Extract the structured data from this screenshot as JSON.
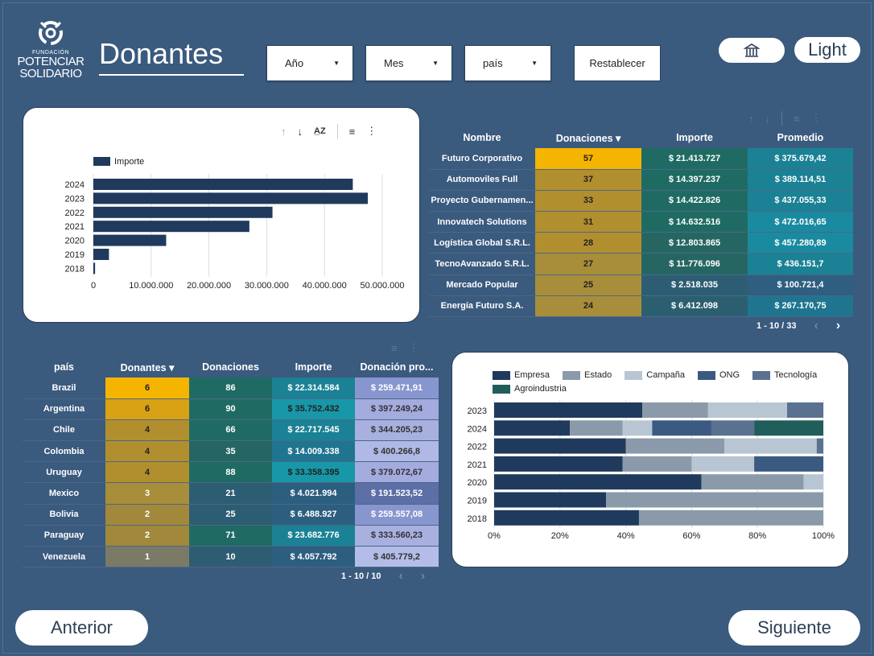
{
  "brand": {
    "line1": "FUNDACIÓN",
    "line2": "POTENCIAR",
    "line3": "SOLIDARIO"
  },
  "page_title": "Donantes",
  "filters": {
    "year": "Año",
    "month": "Mes",
    "country": "país",
    "reset": "Restablecer"
  },
  "header_buttons": {
    "home_icon": "building-icon",
    "theme": "Light"
  },
  "bar_chart": {
    "toolbar": [
      "sort-ascending-icon",
      "sort-descending-icon",
      "sort-az-icon",
      "filter-icon",
      "more-vertical-icon"
    ],
    "chart_data": {
      "type": "bar",
      "orientation": "horizontal",
      "categories": [
        "2024",
        "2023",
        "2022",
        "2021",
        "2020",
        "2019",
        "2018"
      ],
      "series": [
        {
          "name": "Importe",
          "values": [
            44900000,
            47500000,
            31000000,
            27000000,
            12600000,
            2700000,
            300000
          ]
        }
      ],
      "xticks": [
        "0",
        "10.000.000",
        "20.000.000",
        "30.000.000",
        "40.000.000",
        "50.000.000"
      ],
      "xlim": [
        0,
        50000000
      ],
      "legend": "top-left",
      "grid": true,
      "color": "#1f3a5c"
    }
  },
  "table1": {
    "headers": [
      "Nombre",
      "Donaciones",
      "Importe",
      "Promedio"
    ],
    "sort_indicator": "▾",
    "rows": [
      [
        "Futuro Corporativo",
        "57",
        "$ 21.413.727",
        "$ 375.679,42"
      ],
      [
        "Automoviles Full",
        "37",
        "$ 14.397.237",
        "$ 389.114,51"
      ],
      [
        "Proyecto Gubernamen...",
        "33",
        "$ 14.422.826",
        "$ 437.055,33"
      ],
      [
        "Innovatech Solutions",
        "31",
        "$ 14.632.516",
        "$ 472.016,65"
      ],
      [
        "Logística Global S.R.L.",
        "28",
        "$ 12.803.865",
        "$ 457.280,89"
      ],
      [
        "TecnoAvanzado S.R.L.",
        "27",
        "$ 11.776.096",
        "$ 436.151,7"
      ],
      [
        "Mercado Popular",
        "25",
        "$ 2.518.035",
        "$ 100.721,4"
      ],
      [
        "Energía Futuro S.A.",
        "24",
        "$ 6.412.098",
        "$ 267.170,75"
      ]
    ],
    "pager": "1 - 10 / 33"
  },
  "table2": {
    "headers": [
      "país",
      "Donantes",
      "Donaciones",
      "Importe",
      "Donación pro..."
    ],
    "sort_indicator": "▾",
    "rows": [
      [
        "Brazil",
        "6",
        "86",
        "$ 22.314.584",
        "$ 259.471,91"
      ],
      [
        "Argentina",
        "6",
        "90",
        "$ 35.752.432",
        "$ 397.249,24"
      ],
      [
        "Chile",
        "4",
        "66",
        "$ 22.717.545",
        "$ 344.205,23"
      ],
      [
        "Colombia",
        "4",
        "35",
        "$ 14.009.338",
        "$ 400.266,8"
      ],
      [
        "Uruguay",
        "4",
        "88",
        "$ 33.358.395",
        "$ 379.072,67"
      ],
      [
        "Mexico",
        "3",
        "21",
        "$ 4.021.994",
        "$ 191.523,52"
      ],
      [
        "Bolivia",
        "2",
        "25",
        "$ 6.488.927",
        "$ 259.557,08"
      ],
      [
        "Paraguay",
        "2",
        "71",
        "$ 23.682.776",
        "$ 333.560,23"
      ],
      [
        "Venezuela",
        "1",
        "10",
        "$ 4.057.792",
        "$ 405.779,2"
      ]
    ],
    "pager": "1 - 10 / 10"
  },
  "stacked_chart": {
    "chart_data": {
      "type": "bar",
      "orientation": "horizontal",
      "stacked": "percent",
      "categories": [
        "2023",
        "2024",
        "2022",
        "2021",
        "2020",
        "2019",
        "2018"
      ],
      "series": [
        {
          "name": "Empresa",
          "color": "#1f3a5c",
          "values": [
            45,
            23,
            40,
            39,
            63,
            34,
            44
          ]
        },
        {
          "name": "Estado",
          "color": "#8a9aaa",
          "values": [
            20,
            16,
            30,
            21,
            31,
            66,
            56
          ]
        },
        {
          "name": "Campaña",
          "color": "#b8c6d3",
          "values": [
            24,
            9,
            28,
            19,
            6,
            0,
            0
          ]
        },
        {
          "name": "ONG",
          "color": "#3b5a82",
          "values": [
            0,
            18,
            0,
            21,
            0,
            0,
            0
          ]
        },
        {
          "name": "Tecnología",
          "color": "#5a7190",
          "values": [
            11,
            13,
            2,
            0,
            0,
            0,
            0
          ]
        },
        {
          "name": "Agroindustria",
          "color": "#1f5e5a",
          "values": [
            0,
            21,
            0,
            0,
            0,
            0,
            0
          ]
        }
      ],
      "xticks": [
        "0%",
        "20%",
        "40%",
        "60%",
        "80%",
        "100%"
      ],
      "legend": "top",
      "grid": true
    }
  },
  "nav": {
    "prev": "Anterior",
    "next": "Siguiente"
  }
}
